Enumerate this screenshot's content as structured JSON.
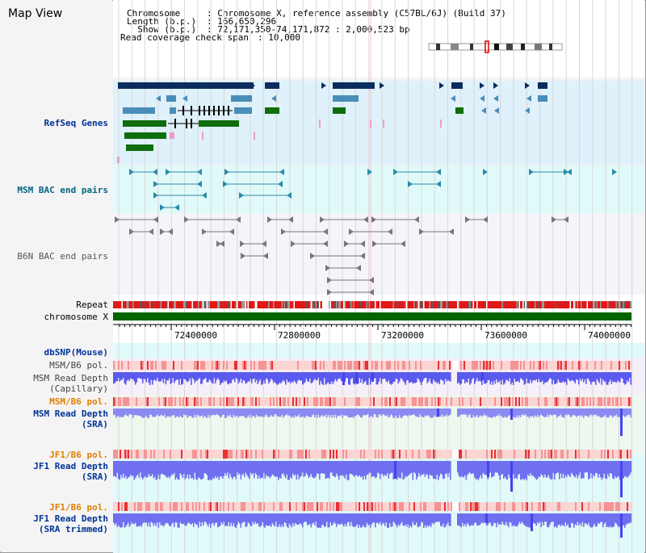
{
  "page_title": "Map View",
  "header": {
    "chromosome_key": "Chromosome",
    "chromosome_val": ": Chromosome X, reference assembly (C57BL/6J) (Build 37)",
    "length_key": "Length (b.p.)",
    "length_val": ": 166,650,296",
    "show_key": "  Show (b.p.)",
    "show_val": ": 72,171,350-74,171,872 : 2,000,523 bp",
    "span_key": "Read coverage check span",
    "span_val": ": 10,000"
  },
  "tracks": {
    "refseq": "RefSeq Genes",
    "msm_bac": "MSM BAC end pairs",
    "b6n_bac": "B6N BAC end pairs",
    "repeat": "Repeat",
    "chromosome": "chromosome X",
    "dbsnp": "dbSNP(Mouse)",
    "msm_pol_1": "MSM/B6 pol.",
    "msm_depth_cap": "MSM Read Depth\n(Capillary)",
    "msm_pol_2": "MSM/B6 pol.",
    "msm_depth_sra": "MSM Read Depth\n(SRA)",
    "jf1_pol_1": "JF1/B6 pol.",
    "jf1_depth_sra": "JF1 Read Depth\n(SRA)",
    "jf1_pol_2": "JF1/B6 pol.",
    "jf1_depth_trim": "JF1 Read Depth\n(SRA trimmed)"
  },
  "axis": {
    "ticks": [
      "72400000",
      "72800000",
      "73200000",
      "73600000",
      "74000000"
    ]
  },
  "colors": {
    "gene_navy": "#0a2d5e",
    "gene_blue": "#4a8db8",
    "gene_green": "#0e6e0e",
    "pink": "#f29ac8",
    "depth_blue": "#4444ee",
    "repeat_red": "#e01818"
  }
}
